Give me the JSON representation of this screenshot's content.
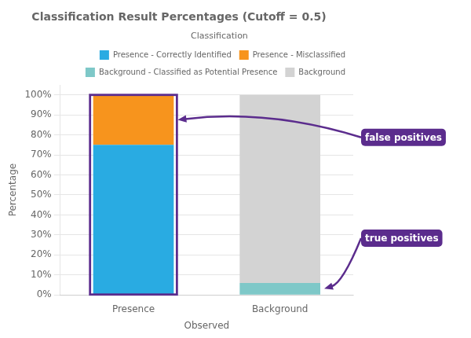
{
  "chart_data": {
    "type": "bar",
    "title": "Classification Result Percentages (Cutoff = 0.5)",
    "xlabel": "Observed",
    "ylabel": "Percentage",
    "categories": [
      "Presence",
      "Background"
    ],
    "series": [
      {
        "name": "Presence - Correctly Identified",
        "color": "#29ABE2",
        "values": [
          75,
          0
        ]
      },
      {
        "name": "Presence - Misclassified",
        "color": "#F7941D",
        "values": [
          25,
          0
        ]
      },
      {
        "name": "Background - Classified as Potential Presence",
        "color": "#7EC8C8",
        "values": [
          0,
          6
        ]
      },
      {
        "name": "Background",
        "color": "#D3D3D3",
        "values": [
          0,
          94
        ]
      }
    ],
    "stacked": true,
    "ylim": [
      0,
      105
    ],
    "yticks": [
      {
        "value": 0,
        "label": "0%"
      },
      {
        "value": 10,
        "label": "10%"
      },
      {
        "value": 20,
        "label": "20%"
      },
      {
        "value": 30,
        "label": "30%"
      },
      {
        "value": 40,
        "label": "40%"
      },
      {
        "value": 50,
        "label": "50%"
      },
      {
        "value": 60,
        "label": "60%"
      },
      {
        "value": 70,
        "label": "70%"
      },
      {
        "value": 80,
        "label": "80%"
      },
      {
        "value": 90,
        "label": "90%"
      },
      {
        "value": 100,
        "label": "100%"
      }
    ],
    "grid": true,
    "legend": "upper right",
    "legend_title": "Classification",
    "annotations": [
      {
        "text": "false positives",
        "color": "#5B2C8D",
        "text_color": "#FFFFFF"
      },
      {
        "text": "true positives",
        "color": "#5B2C8D",
        "text_color": "#FFFFFF"
      }
    ]
  }
}
